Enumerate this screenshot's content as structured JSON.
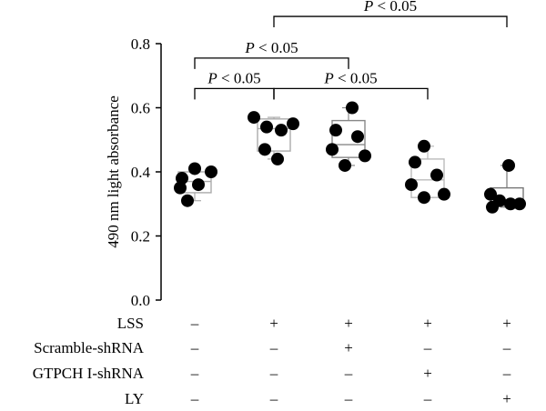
{
  "chart_data": {
    "type": "scatter",
    "subtype": "box-with-points",
    "ylabel": "490 nm light absorbance",
    "ylim": [
      0.0,
      0.8
    ],
    "yticks": [
      "0.0",
      "0.2",
      "0.4",
      "0.6",
      "0.8"
    ],
    "groups": [
      {
        "points": [
          0.38,
          0.41,
          0.4,
          0.35,
          0.36,
          0.31
        ],
        "box": {
          "q1": 0.335,
          "median": 0.37,
          "q3": 0.4,
          "whisker_low": 0.31,
          "whisker_high": 0.41
        },
        "box_color": "#aaaaaa"
      },
      {
        "points": [
          0.57,
          0.54,
          0.55,
          0.53,
          0.47,
          0.44
        ],
        "box": {
          "q1": 0.465,
          "median": 0.535,
          "q3": 0.565,
          "whisker_low": 0.44,
          "whisker_high": 0.57
        },
        "box_color": "#aaaaaa"
      },
      {
        "points": [
          0.6,
          0.53,
          0.51,
          0.47,
          0.45,
          0.42
        ],
        "box": {
          "q1": 0.445,
          "median": 0.485,
          "q3": 0.56,
          "whisker_low": 0.42,
          "whisker_high": 0.6
        },
        "box_color": "#888888"
      },
      {
        "points": [
          0.48,
          0.43,
          0.39,
          0.36,
          0.33,
          0.32
        ],
        "box": {
          "q1": 0.32,
          "median": 0.375,
          "q3": 0.44,
          "whisker_low": 0.32,
          "whisker_high": 0.48
        },
        "box_color": "#bbbbbb"
      },
      {
        "points": [
          0.42,
          0.33,
          0.31,
          0.3,
          0.3,
          0.29
        ],
        "box": {
          "q1": 0.295,
          "median": 0.305,
          "q3": 0.35,
          "whisker_low": 0.29,
          "whisker_high": 0.42
        },
        "box_color": "#777777"
      }
    ],
    "condition_rows": [
      {
        "label": "LSS",
        "values": [
          "–",
          "+",
          "+",
          "+",
          "+"
        ]
      },
      {
        "label": "Scramble-shRNA",
        "values": [
          "–",
          "–",
          "+",
          "–",
          "–"
        ]
      },
      {
        "label": "GTPCH I-shRNA",
        "values": [
          "–",
          "–",
          "–",
          "+",
          "–"
        ]
      },
      {
        "label": "LY",
        "values": [
          "–",
          "–",
          "–",
          "–",
          "+"
        ]
      }
    ],
    "significance": [
      {
        "from": 0,
        "to": 1,
        "y": 0.66,
        "label": "P < 0.05"
      },
      {
        "from": 0,
        "to": 2,
        "y": 0.755,
        "label": "P < 0.05"
      },
      {
        "from": 1,
        "to": 3,
        "y": 0.66,
        "label": "P < 0.05"
      },
      {
        "from": 1,
        "to": 4,
        "y": 0.885,
        "label": "P < 0.05"
      }
    ],
    "point_color": "#000000",
    "grid": false
  }
}
